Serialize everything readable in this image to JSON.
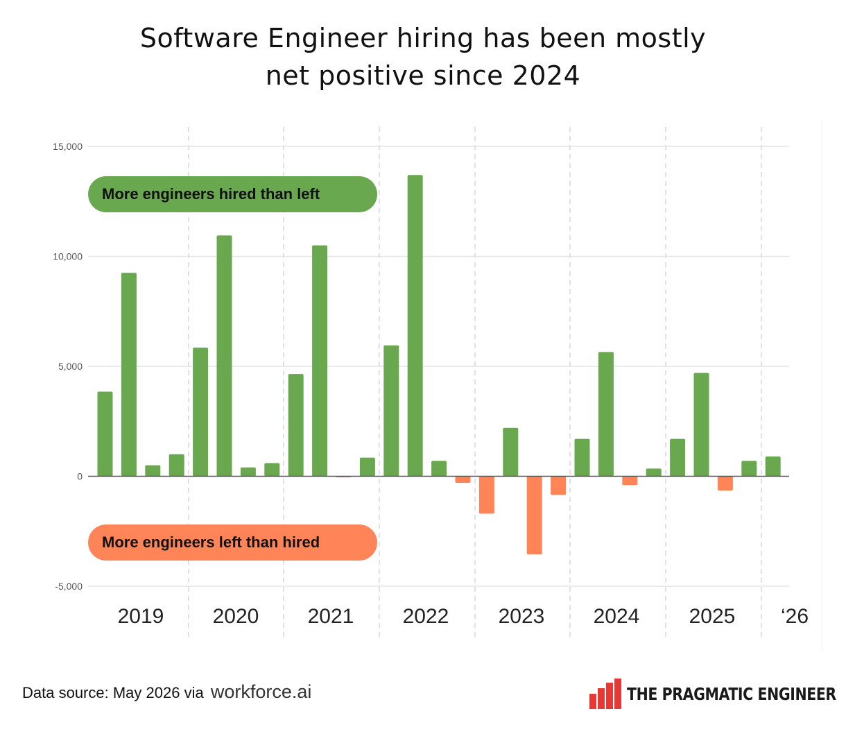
{
  "title": {
    "line1": "Software Engineer hiring has been mostly",
    "line2": "net positive since 2024"
  },
  "annotations": {
    "positive": "More engineers hired than left",
    "negative": "More engineers left than hired"
  },
  "footer": {
    "source_label": "Data source:  May 2026 via",
    "source_host": "workforce.ai",
    "brand": "THE PRAGMATIC ENGINEER"
  },
  "colors": {
    "positive": "#6aa84f",
    "negative": "#ff8458",
    "grid": "#e3e3e8",
    "divider": "#d6d6e6",
    "axis_text": "#555555"
  },
  "chart_data": {
    "type": "bar",
    "categories": [
      "2019 Q1",
      "2019 Q2",
      "2019 Q3",
      "2019 Q4",
      "2020 Q1",
      "2020 Q2",
      "2020 Q3",
      "2020 Q4",
      "2021 Q1",
      "2021 Q2",
      "2021 Q3",
      "2021 Q4",
      "2022 Q1",
      "2022 Q2",
      "2022 Q3",
      "2022 Q4",
      "2023 Q1",
      "2023 Q2",
      "2023 Q3",
      "2023 Q4",
      "2024 Q1",
      "2024 Q2",
      "2024 Q3",
      "2024 Q4",
      "2025 Q1",
      "2025 Q2",
      "2025 Q3",
      "2025 Q4",
      "2026 Q1"
    ],
    "values": [
      3850,
      9250,
      500,
      1000,
      5850,
      10950,
      400,
      600,
      4650,
      10500,
      -50,
      850,
      5950,
      13700,
      700,
      -300,
      -1700,
      2200,
      -3550,
      -850,
      1700,
      5650,
      -400,
      350,
      1700,
      4700,
      -650,
      700,
      900
    ],
    "year_labels": [
      "2019",
      "2020",
      "2021",
      "2022",
      "2023",
      "2024",
      "2025",
      "‘26"
    ],
    "y_ticks": [
      15000,
      10000,
      5000,
      0,
      -5000
    ],
    "y_tick_labels": [
      "15,000",
      "10,000",
      "5,000",
      "0",
      "-5,000"
    ],
    "ylim": [
      -5000,
      15000
    ],
    "grid": true
  }
}
